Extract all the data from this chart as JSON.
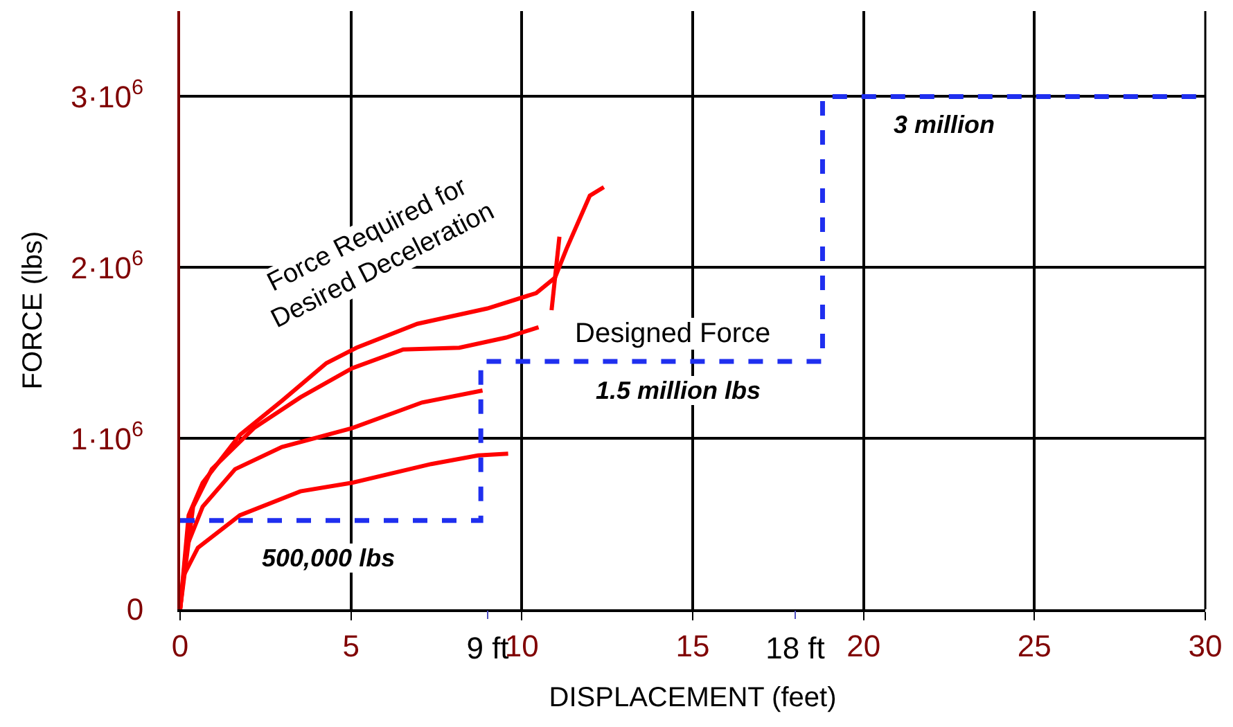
{
  "chart_data": {
    "type": "line",
    "xlabel": "DISPLACEMENT (feet)",
    "ylabel": "FORCE (lbs)",
    "xlim": [
      0,
      30
    ],
    "xticks": [
      0,
      5,
      10,
      15,
      20,
      25,
      30
    ],
    "x2lim": [
      0,
      30
    ],
    "x2ticks": [
      {
        "value": 9,
        "label": "9 ft"
      },
      {
        "value": 18,
        "label": "18 ft"
      }
    ],
    "ylim": [
      0,
      3500000
    ],
    "yticks": [
      {
        "value": 0,
        "label": "0"
      },
      {
        "value": 1000000,
        "label": "1·10$^{6}$"
      },
      {
        "value": 2000000,
        "label": "2·10$^{6}$"
      },
      {
        "value": 3000000,
        "label": "3·10$^{6}$"
      }
    ],
    "grid": true,
    "marker": "none",
    "series": [
      {
        "color": "#ff0000",
        "line_style": "solid",
        "x": [
          0,
          0.25,
          0.66,
          1.75,
          2.98,
          4.28,
          5.16,
          6.94,
          8.99,
          10.42,
          10.97,
          11.31,
          11.99,
          12.4
        ],
        "values": [
          0,
          550000,
          740000,
          1020000,
          1220000,
          1440000,
          1530000,
          1670000,
          1760000,
          1850000,
          1940000,
          2110000,
          2420000,
          2470000
        ]
      },
      {
        "color": "#ff0000",
        "line_style": "solid",
        "x": [
          10.87,
          11.1
        ],
        "values": [
          1750000,
          2180000
        ]
      },
      {
        "color": "#ff0000",
        "line_style": "solid",
        "x": [
          0,
          0.38,
          0.93,
          2.16,
          3.52,
          5.03,
          6.53,
          8.17,
          9.54,
          10.49
        ],
        "values": [
          0,
          600000,
          820000,
          1060000,
          1240000,
          1410000,
          1520000,
          1530000,
          1590000,
          1650000
        ]
      },
      {
        "color": "#ff0000",
        "line_style": "solid",
        "x": [
          0,
          0.18,
          0.66,
          1.61,
          2.98,
          5.03,
          7.08,
          8.85
        ],
        "values": [
          0,
          360000,
          600000,
          820000,
          950000,
          1060000,
          1210000,
          1280000
        ]
      },
      {
        "color": "#ff0000",
        "line_style": "solid",
        "x": [
          0,
          0.11,
          0.52,
          1.75,
          3.52,
          5.03,
          7.35,
          8.72,
          9.6
        ],
        "values": [
          0,
          200000,
          360000,
          550000,
          690000,
          740000,
          850000,
          900000,
          910000
        ]
      },
      {
        "color": "#1f2fef",
        "line_style": "dashed",
        "x": [
          0,
          8.8,
          8.8,
          18.8,
          18.8,
          30
        ],
        "values": [
          520000,
          520000,
          1450000,
          1450000,
          3000000,
          3000000
        ]
      }
    ],
    "annotations": [
      "Force Required for\nDesired Deceleration",
      "Designed Force",
      "1.5 million lbs",
      "500,000 lbs",
      "3 million"
    ]
  }
}
